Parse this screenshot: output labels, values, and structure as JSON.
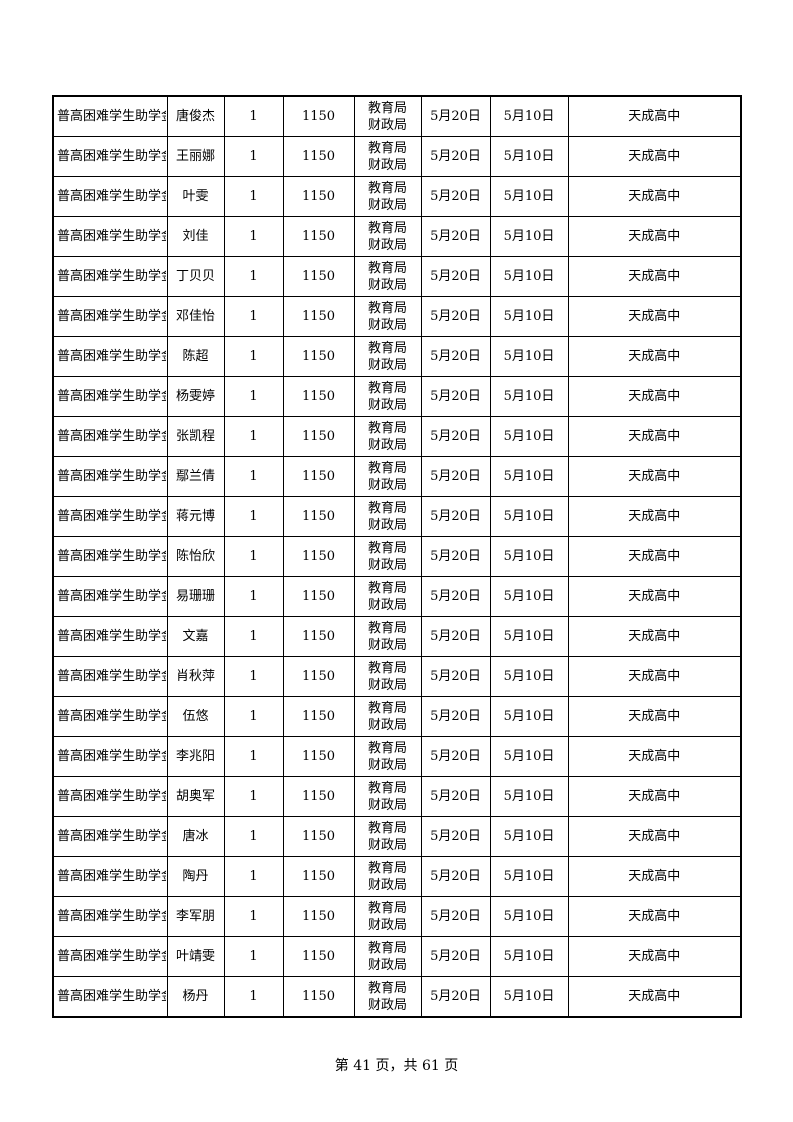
{
  "table": {
    "rows": [
      [
        "普高困难学生助学金",
        "唐俊杰",
        "1",
        "1150",
        "教育局财政局",
        "5月20日",
        "5月10日",
        "天成高中"
      ],
      [
        "普高困难学生助学金",
        "王丽娜",
        "1",
        "1150",
        "教育局财政局",
        "5月20日",
        "5月10日",
        "天成高中"
      ],
      [
        "普高困难学生助学金",
        "叶雯",
        "1",
        "1150",
        "教育局财政局",
        "5月20日",
        "5月10日",
        "天成高中"
      ],
      [
        "普高困难学生助学金",
        "刘佳",
        "1",
        "1150",
        "教育局财政局",
        "5月20日",
        "5月10日",
        "天成高中"
      ],
      [
        "普高困难学生助学金",
        "丁贝贝",
        "1",
        "1150",
        "教育局财政局",
        "5月20日",
        "5月10日",
        "天成高中"
      ],
      [
        "普高困难学生助学金",
        "邓佳怡",
        "1",
        "1150",
        "教育局财政局",
        "5月20日",
        "5月10日",
        "天成高中"
      ],
      [
        "普高困难学生助学金",
        "陈超",
        "1",
        "1150",
        "教育局财政局",
        "5月20日",
        "5月10日",
        "天成高中"
      ],
      [
        "普高困难学生助学金",
        "杨雯婷",
        "1",
        "1150",
        "教育局财政局",
        "5月20日",
        "5月10日",
        "天成高中"
      ],
      [
        "普高困难学生助学金",
        "张凯程",
        "1",
        "1150",
        "教育局财政局",
        "5月20日",
        "5月10日",
        "天成高中"
      ],
      [
        "普高困难学生助学金",
        "鄢兰倩",
        "1",
        "1150",
        "教育局财政局",
        "5月20日",
        "5月10日",
        "天成高中"
      ],
      [
        "普高困难学生助学金",
        "蒋元博",
        "1",
        "1150",
        "教育局财政局",
        "5月20日",
        "5月10日",
        "天成高中"
      ],
      [
        "普高困难学生助学金",
        "陈怡欣",
        "1",
        "1150",
        "教育局财政局",
        "5月20日",
        "5月10日",
        "天成高中"
      ],
      [
        "普高困难学生助学金",
        "易珊珊",
        "1",
        "1150",
        "教育局财政局",
        "5月20日",
        "5月10日",
        "天成高中"
      ],
      [
        "普高困难学生助学金",
        "文嘉",
        "1",
        "1150",
        "教育局财政局",
        "5月20日",
        "5月10日",
        "天成高中"
      ],
      [
        "普高困难学生助学金",
        "肖秋萍",
        "1",
        "1150",
        "教育局财政局",
        "5月20日",
        "5月10日",
        "天成高中"
      ],
      [
        "普高困难学生助学金",
        "伍悠",
        "1",
        "1150",
        "教育局财政局",
        "5月20日",
        "5月10日",
        "天成高中"
      ],
      [
        "普高困难学生助学金",
        "李兆阳",
        "1",
        "1150",
        "教育局财政局",
        "5月20日",
        "5月10日",
        "天成高中"
      ],
      [
        "普高困难学生助学金",
        "胡奥军",
        "1",
        "1150",
        "教育局财政局",
        "5月20日",
        "5月10日",
        "天成高中"
      ],
      [
        "普高困难学生助学金",
        "唐冰",
        "1",
        "1150",
        "教育局财政局",
        "5月20日",
        "5月10日",
        "天成高中"
      ],
      [
        "普高困难学生助学金",
        "陶丹",
        "1",
        "1150",
        "教育局财政局",
        "5月20日",
        "5月10日",
        "天成高中"
      ],
      [
        "普高困难学生助学金",
        "李军朋",
        "1",
        "1150",
        "教育局财政局",
        "5月20日",
        "5月10日",
        "天成高中"
      ],
      [
        "普高困难学生助学金",
        "叶靖雯",
        "1",
        "1150",
        "教育局财政局",
        "5月20日",
        "5月10日",
        "天成高中"
      ],
      [
        "普高困难学生助学金",
        "杨丹",
        "1",
        "1150",
        "教育局财政局",
        "5月20日",
        "5月10日",
        "天成高中"
      ]
    ]
  },
  "footer": {
    "page_label": "第 41 页，共 61 页"
  }
}
